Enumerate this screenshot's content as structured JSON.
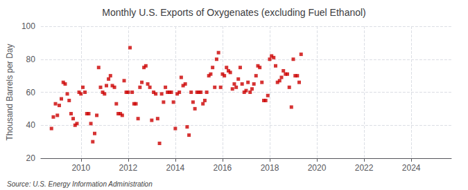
{
  "chart_data": {
    "type": "scatter",
    "title": "Monthly U.S. Exports of Oxygenates (excluding Fuel Ethanol)",
    "ylabel": "Thousand Barrels per Day",
    "annotations": [
      "Source: U.S. Energy Information Administration"
    ],
    "color": "#cc0000",
    "marker": "square",
    "grid": true,
    "xlim": [
      2008.3,
      2025.7
    ],
    "ylim": [
      20,
      100
    ],
    "xticks": [
      2010,
      2012,
      2014,
      2016,
      2018,
      2020,
      2022,
      2024
    ],
    "yticks": [
      20,
      40,
      60,
      80,
      100
    ],
    "x": [
      2008.75,
      2008.83,
      2008.92,
      2009.0,
      2009.08,
      2009.17,
      2009.25,
      2009.33,
      2009.42,
      2009.5,
      2009.58,
      2009.67,
      2009.75,
      2009.83,
      2009.92,
      2010.0,
      2010.08,
      2010.17,
      2010.25,
      2010.33,
      2010.42,
      2010.5,
      2010.58,
      2010.67,
      2010.75,
      2010.83,
      2010.92,
      2011.0,
      2011.08,
      2011.17,
      2011.25,
      2011.33,
      2011.42,
      2011.5,
      2011.58,
      2011.67,
      2011.75,
      2011.83,
      2011.92,
      2012.0,
      2012.08,
      2012.17,
      2012.25,
      2012.33,
      2012.42,
      2012.5,
      2012.58,
      2012.67,
      2012.75,
      2012.83,
      2012.92,
      2013.0,
      2013.08,
      2013.17,
      2013.25,
      2013.33,
      2013.42,
      2013.5,
      2013.58,
      2013.67,
      2013.75,
      2013.83,
      2013.92,
      2014.0,
      2014.08,
      2014.17,
      2014.25,
      2014.33,
      2014.42,
      2014.5,
      2014.58,
      2014.67,
      2014.75,
      2014.83,
      2014.92,
      2015.0,
      2015.08,
      2015.17,
      2015.25,
      2015.33,
      2015.42,
      2015.5,
      2015.58,
      2015.67,
      2015.75,
      2015.83,
      2015.92,
      2016.0,
      2016.08,
      2016.17,
      2016.25,
      2016.33,
      2016.42,
      2016.5,
      2016.58,
      2016.67,
      2016.75,
      2016.83,
      2016.92,
      2017.0,
      2017.08,
      2017.17,
      2017.25,
      2017.33,
      2017.42,
      2017.5,
      2017.58,
      2017.67,
      2017.75,
      2017.83,
      2017.92,
      2018.0,
      2018.08,
      2018.17,
      2018.25,
      2018.33,
      2018.42,
      2018.5,
      2018.58,
      2018.67,
      2018.75,
      2018.83,
      2018.92,
      2019.0,
      2019.08,
      2019.17,
      2019.25,
      2019.33
    ],
    "values": [
      38,
      45,
      53,
      46,
      52,
      56,
      66,
      65,
      59,
      55,
      47,
      44,
      40,
      41,
      60,
      59,
      63,
      60,
      47,
      47,
      41,
      30,
      35,
      46,
      75,
      63,
      60,
      59,
      64,
      68,
      70,
      64,
      63,
      53,
      47,
      47,
      46,
      67,
      60,
      60,
      87,
      60,
      53,
      53,
      44,
      63,
      66,
      75,
      76,
      65,
      63,
      43,
      60,
      59,
      44,
      29,
      59,
      54,
      63,
      60,
      60,
      60,
      54,
      38,
      59,
      60,
      69,
      64,
      65,
      39,
      34,
      60,
      54,
      50,
      60,
      60,
      60,
      53,
      55,
      60,
      70,
      71,
      75,
      63,
      80,
      84,
      63,
      71,
      70,
      75,
      73,
      72,
      62,
      65,
      63,
      68,
      75,
      65,
      60,
      61,
      66,
      60,
      62,
      65,
      70,
      76,
      75,
      66,
      55,
      55,
      58,
      80,
      82,
      81,
      76,
      66,
      67,
      69,
      73,
      71,
      71,
      63,
      51,
      80,
      70,
      70,
      66,
      83
    ]
  }
}
